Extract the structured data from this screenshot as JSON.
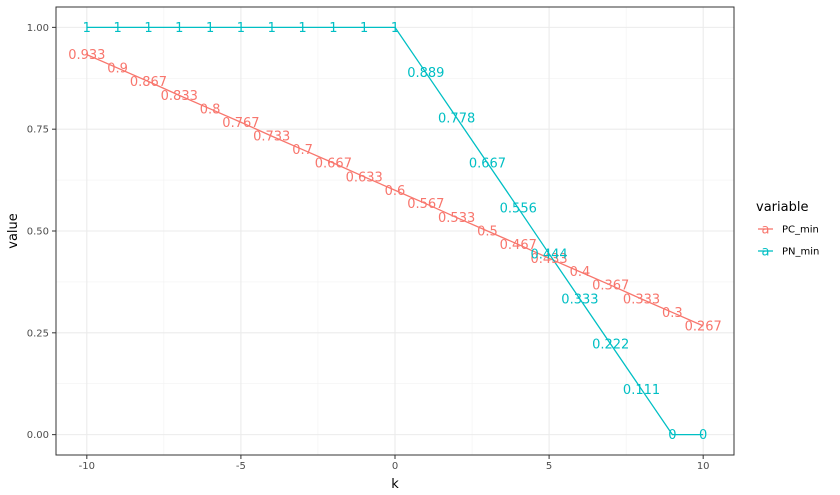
{
  "chart_data": {
    "type": "line",
    "xlabel": "k",
    "ylabel": "value",
    "xlim": [
      -11,
      11
    ],
    "ylim": [
      -0.05,
      1.05
    ],
    "x_ticks": [
      -10,
      -5,
      0,
      5,
      10
    ],
    "x_tick_labels": [
      "-10",
      "-5",
      "0",
      "5",
      "10"
    ],
    "y_ticks": [
      0,
      0.25,
      0.5,
      0.75,
      1.0
    ],
    "y_tick_labels": [
      "0.00",
      "0.25",
      "0.50",
      "0.75",
      "1.00"
    ],
    "grid": true,
    "legend": {
      "title": "variable",
      "placement": "right",
      "key_glyph": "a"
    },
    "x": [
      -10,
      -9,
      -8,
      -7,
      -6,
      -5,
      -4,
      -3,
      -2,
      -1,
      0,
      1,
      2,
      3,
      4,
      5,
      6,
      7,
      8,
      9,
      10
    ],
    "series": [
      {
        "name": "PC_min",
        "color": "#F8766D",
        "x": [
          -10,
          -9,
          -8,
          -7,
          -6,
          -5,
          -4,
          -3,
          -2,
          -1,
          0,
          1,
          2,
          3,
          4,
          5,
          6,
          7,
          8,
          9,
          10
        ],
        "values": [
          0.933,
          0.9,
          0.867,
          0.833,
          0.8,
          0.767,
          0.733,
          0.7,
          0.667,
          0.633,
          0.6,
          0.567,
          0.533,
          0.5,
          0.467,
          0.433,
          0.4,
          0.367,
          0.333,
          0.3,
          0.267
        ],
        "labels": [
          "0.933",
          "0.9",
          "0.867",
          "0.833",
          "0.8",
          "0.767",
          "0.733",
          "0.7",
          "0.667",
          "0.633",
          "0.6",
          "0.567",
          "0.533",
          "0.5",
          "0.467",
          "0.433",
          "0.4",
          "0.367",
          "0.333",
          "0.3",
          "0.267"
        ]
      },
      {
        "name": "PN_min",
        "color": "#00BFC4",
        "x": [
          -10,
          -9,
          -8,
          -7,
          -6,
          -5,
          -4,
          -3,
          -2,
          -1,
          0,
          1,
          2,
          3,
          4,
          5,
          6,
          7,
          8,
          9,
          10
        ],
        "values": [
          1,
          1,
          1,
          1,
          1,
          1,
          1,
          1,
          1,
          1,
          1,
          0.889,
          0.778,
          0.667,
          0.556,
          0.444,
          0.333,
          0.222,
          0.111,
          0,
          0
        ],
        "labels": [
          "1",
          "1",
          "1",
          "1",
          "1",
          "1",
          "1",
          "1",
          "1",
          "1",
          "1",
          "0.889",
          "0.778",
          "0.667",
          "0.556",
          "0.444",
          "0.333",
          "0.222",
          "0.111",
          "0",
          "0"
        ]
      }
    ]
  }
}
